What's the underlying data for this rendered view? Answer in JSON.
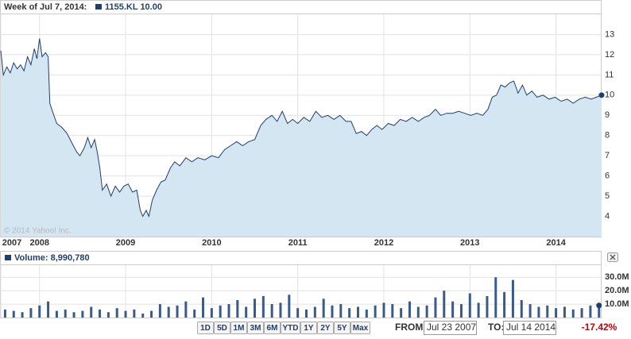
{
  "header": {
    "week": "Week of Jul 7, 2014:",
    "legend": "1155.KL 10.00"
  },
  "chart_data": [
    {
      "type": "area",
      "watermark": "© 2014 Yahoo! Inc.",
      "x": [
        2007.55,
        2007.58,
        2007.62,
        2007.66,
        2007.7,
        2007.74,
        2007.78,
        2007.82,
        2007.86,
        2007.9,
        2007.94,
        2007.97,
        2008.0,
        2008.03,
        2008.07,
        2008.1,
        2008.12,
        2008.15,
        2008.2,
        2008.26,
        2008.32,
        2008.38,
        2008.43,
        2008.47,
        2008.52,
        2008.56,
        2008.6,
        2008.64,
        2008.67,
        2008.7,
        2008.73,
        2008.78,
        2008.83,
        2008.88,
        2008.93,
        2008.98,
        2009.03,
        2009.08,
        2009.13,
        2009.17,
        2009.2,
        2009.24,
        2009.27,
        2009.31,
        2009.36,
        2009.41,
        2009.46,
        2009.52,
        2009.57,
        2009.63,
        2009.7,
        2009.77,
        2009.84,
        2009.92,
        2010.0,
        2010.08,
        2010.15,
        2010.22,
        2010.29,
        2010.36,
        2010.43,
        2010.5,
        2010.57,
        2010.63,
        2010.7,
        2010.76,
        2010.82,
        2010.88,
        2010.94,
        2011.0,
        2011.07,
        2011.14,
        2011.21,
        2011.28,
        2011.35,
        2011.42,
        2011.49,
        2011.56,
        2011.62,
        2011.68,
        2011.74,
        2011.8,
        2011.86,
        2011.92,
        2011.98,
        2012.05,
        2012.12,
        2012.19,
        2012.26,
        2012.33,
        2012.4,
        2012.47,
        2012.53,
        2012.6,
        2012.66,
        2012.73,
        2012.8,
        2012.87,
        2012.94,
        2013.01,
        2013.08,
        2013.15,
        2013.21,
        2013.26,
        2013.31,
        2013.36,
        2013.41,
        2013.46,
        2013.51,
        2013.56,
        2013.61,
        2013.66,
        2013.72,
        2013.78,
        2013.85,
        2013.92,
        2013.99,
        2014.06,
        2014.13,
        2014.2,
        2014.27,
        2014.34,
        2014.41,
        2014.47,
        2014.53
      ],
      "series": [
        {
          "color": "#1f3f6e",
          "fill": "#d5e6f3",
          "values": [
            12.2,
            11.0,
            11.4,
            11.1,
            11.6,
            11.3,
            11.5,
            11.2,
            11.9,
            11.5,
            12.3,
            11.8,
            12.8,
            11.9,
            12.1,
            11.9,
            9.6,
            9.2,
            8.6,
            8.4,
            8.1,
            7.6,
            7.2,
            7.0,
            7.4,
            7.9,
            7.4,
            7.8,
            7.2,
            6.4,
            5.3,
            5.6,
            5.0,
            5.5,
            5.2,
            5.5,
            5.6,
            5.2,
            5.3,
            4.3,
            4.0,
            4.3,
            4.0,
            4.8,
            5.3,
            5.7,
            5.8,
            6.4,
            6.7,
            6.5,
            6.9,
            6.7,
            6.9,
            6.8,
            7.0,
            6.9,
            7.3,
            7.5,
            7.7,
            7.5,
            7.7,
            7.8,
            8.5,
            8.8,
            9.0,
            8.7,
            9.2,
            8.6,
            8.8,
            8.6,
            8.9,
            8.7,
            9.2,
            8.9,
            9.0,
            8.8,
            9.0,
            8.7,
            8.7,
            8.1,
            8.2,
            8.0,
            8.3,
            8.5,
            8.3,
            8.6,
            8.5,
            8.8,
            8.7,
            8.9,
            8.7,
            8.9,
            9.0,
            9.3,
            9.0,
            9.1,
            9.1,
            9.2,
            9.1,
            9.0,
            9.1,
            9.0,
            9.3,
            9.9,
            10.0,
            10.5,
            10.4,
            10.6,
            10.7,
            10.1,
            10.5,
            10.0,
            10.2,
            9.9,
            10.0,
            9.8,
            9.9,
            9.7,
            9.8,
            9.6,
            9.8,
            9.9,
            9.8,
            9.9,
            10.0
          ]
        }
      ],
      "xlim": [
        2007.55,
        2014.53
      ],
      "xticks": [
        {
          "value": 2007.55,
          "label": "2007"
        },
        2008,
        2009,
        2010,
        2011,
        2012,
        2013,
        2014
      ],
      "ylim": [
        3,
        14
      ],
      "yticks": [
        4,
        5,
        6,
        7,
        8,
        9,
        10,
        11,
        12,
        13
      ],
      "grid": true
    },
    {
      "type": "bar",
      "title": "Volume: 8,990,780",
      "color": "#3a5a8a",
      "x": [
        2007.6,
        2007.7,
        2007.8,
        2007.9,
        2008.0,
        2008.1,
        2008.2,
        2008.3,
        2008.4,
        2008.5,
        2008.6,
        2008.7,
        2008.8,
        2008.9,
        2009.0,
        2009.1,
        2009.2,
        2009.3,
        2009.4,
        2009.5,
        2009.6,
        2009.7,
        2009.8,
        2009.9,
        2010.0,
        2010.1,
        2010.2,
        2010.3,
        2010.4,
        2010.5,
        2010.6,
        2010.7,
        2010.8,
        2010.9,
        2011.0,
        2011.1,
        2011.2,
        2011.3,
        2011.4,
        2011.5,
        2011.6,
        2011.7,
        2011.8,
        2011.9,
        2012.0,
        2012.1,
        2012.2,
        2012.3,
        2012.4,
        2012.5,
        2012.6,
        2012.7,
        2012.8,
        2012.9,
        2013.0,
        2013.1,
        2013.2,
        2013.3,
        2013.4,
        2013.5,
        2013.6,
        2013.7,
        2013.8,
        2013.9,
        2014.0,
        2014.1,
        2014.2,
        2014.3,
        2014.4,
        2014.5
      ],
      "values": [
        6000000,
        5000000,
        4000000,
        7000000,
        9000000,
        12000000,
        5000000,
        6000000,
        4000000,
        5000000,
        8000000,
        6000000,
        4000000,
        7000000,
        5000000,
        6000000,
        3000000,
        5000000,
        10000000,
        8000000,
        9000000,
        12000000,
        6000000,
        15000000,
        7000000,
        9000000,
        10000000,
        13000000,
        8000000,
        14000000,
        16000000,
        10000000,
        11000000,
        17000000,
        7000000,
        6000000,
        8000000,
        14000000,
        9000000,
        10000000,
        7000000,
        8000000,
        6000000,
        9000000,
        11000000,
        10000000,
        7000000,
        12000000,
        8000000,
        9000000,
        15000000,
        20000000,
        12000000,
        10000000,
        18000000,
        11000000,
        16000000,
        30000000,
        19000000,
        28000000,
        13000000,
        10000000,
        8000000,
        9000000,
        7000000,
        8000000,
        6000000,
        7000000,
        9000000,
        8990780
      ],
      "ylim": [
        0,
        39000000
      ],
      "yticks": [
        {
          "value": 10000000,
          "label": "10.0M"
        },
        {
          "value": 20000000,
          "label": "20.0M"
        },
        {
          "value": 30000000,
          "label": "30.0M"
        }
      ]
    }
  ],
  "controls": {
    "ranges": [
      "1D",
      "5D",
      "1M",
      "3M",
      "6M",
      "YTD",
      "1Y",
      "2Y",
      "5Y",
      "Max"
    ],
    "from_label": "FROM:",
    "from_date": "Jul 23 2007",
    "to_label": "TO:",
    "to_date": "Jul 14 2014",
    "change": "-17.42%"
  }
}
